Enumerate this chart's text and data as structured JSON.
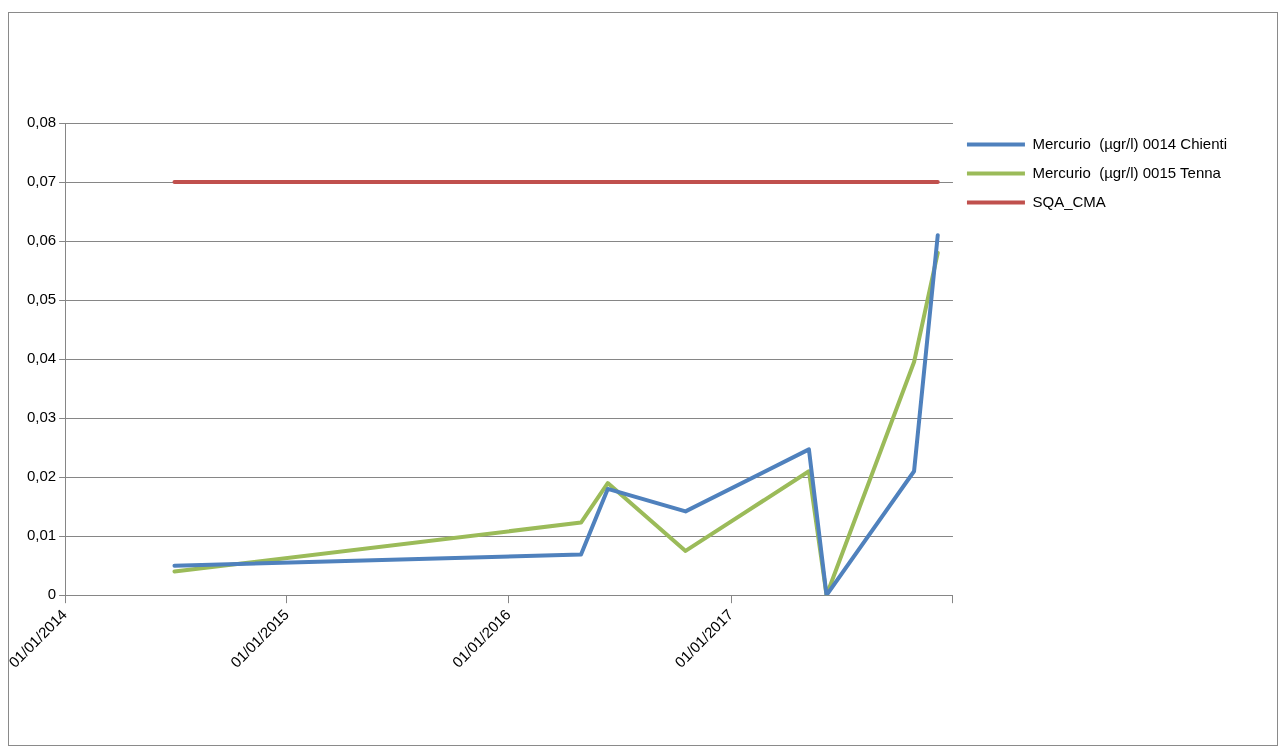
{
  "chart_data": {
    "type": "line",
    "x": [
      "2014-06-30",
      "2016-04-29",
      "2016-06-12",
      "2016-10-18",
      "2017-05-09",
      "2017-06-07",
      "2017-10-29",
      "2017-12-07"
    ],
    "series": [
      {
        "name": "Mercurio  (µgr/l) 0014 Chienti",
        "color": "#4f81bd",
        "values": [
          0.005,
          0.0069,
          0.018,
          0.0142,
          0.0247,
          0,
          0.021,
          0.061
        ]
      },
      {
        "name": "Mercurio  (µgr/l) 0015 Tenna",
        "color": "#9bbb59",
        "values": [
          0.004,
          0.0123,
          0.019,
          0.0075,
          0.021,
          0,
          0.0395,
          0.058
        ]
      },
      {
        "name": "SQA_CMA",
        "color": "#c0504d",
        "x": [
          "2014-06-30",
          "2017-12-07"
        ],
        "values": [
          0.07,
          0.07
        ]
      }
    ],
    "xlim": [
      "2014-01-01",
      "2018-01-01"
    ],
    "xticks": [
      {
        "value": "2014-01-01",
        "label": "01/01/2014"
      },
      {
        "value": "2015-01-01",
        "label": "01/01/2015"
      },
      {
        "value": "2016-01-01",
        "label": "01/01/2016"
      },
      {
        "value": "2017-01-01",
        "label": "01/01/2017"
      },
      {
        "value": "2018-01-01",
        "label": null
      }
    ],
    "ylim": [
      0,
      0.08
    ],
    "yticks": [
      0,
      {
        "value": 0.01,
        "label": "0,01"
      },
      {
        "value": 0.02,
        "label": "0,02"
      },
      {
        "value": 0.03,
        "label": "0,03"
      },
      {
        "value": 0.04,
        "label": "0,04"
      },
      {
        "value": 0.05,
        "label": "0,05"
      },
      {
        "value": 0.06,
        "label": "0,06"
      },
      {
        "value": 0.07,
        "label": "0,07"
      },
      {
        "value": 0.08,
        "label": "0,08"
      }
    ],
    "grid": "y",
    "legend": "top right",
    "marker": "none",
    "line_style": "solid"
  }
}
